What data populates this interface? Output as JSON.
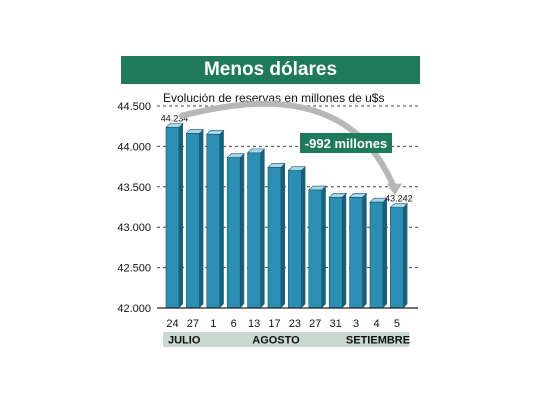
{
  "title": "Menos dólares",
  "chart_data": {
    "type": "bar",
    "subtitle": "Evolución de reservas en millones de u$s",
    "categories": [
      "24",
      "27",
      "1",
      "6",
      "13",
      "17",
      "23",
      "27",
      "31",
      "3",
      "4",
      "5"
    ],
    "months": [
      {
        "name": "JULIO",
        "from": 0,
        "to": 1
      },
      {
        "name": "AGOSTO",
        "from": 2,
        "to": 8
      },
      {
        "name": "SETIEMBRE",
        "from": 9,
        "to": 11
      }
    ],
    "series": [
      {
        "values": [
          44234,
          44160,
          44150,
          43860,
          43920,
          43740,
          43700,
          43460,
          43370,
          43370,
          43310,
          43242
        ]
      }
    ],
    "data_labels": [
      {
        "index": 0,
        "text": "44.234"
      },
      {
        "index": 11,
        "text": "43.242"
      }
    ],
    "annotation": "-992 millones",
    "ylim": [
      42000,
      44500
    ],
    "yticks": [
      {
        "value": 42000,
        "label": "42.000"
      },
      {
        "value": 42500,
        "label": "42.500"
      },
      {
        "value": 43000,
        "label": "43.000"
      },
      {
        "value": 43500,
        "label": "43.500"
      },
      {
        "value": 44000,
        "label": "44.000"
      },
      {
        "value": 44500,
        "label": "44.500"
      }
    ],
    "colors": {
      "bar": "#2a8fb3",
      "bar_dark": "#1a5f79",
      "bar_top": "#a9d6e6",
      "band": "#1e7a5a",
      "month_band": "#c9d8d0",
      "annotation_bg": "#1e7a5a",
      "arrow": "#b7b7b7"
    }
  }
}
